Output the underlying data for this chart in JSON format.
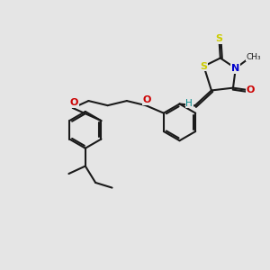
{
  "bg_color": "#e5e5e5",
  "bond_color": "#1a1a1a",
  "bond_width": 1.5,
  "S_color": "#cccc00",
  "N_color": "#0000cc",
  "O_color": "#cc0000",
  "H_color": "#008888",
  "figsize": [
    3.0,
    3.0
  ],
  "dpi": 100,
  "xlim": [
    -1.0,
    9.5
  ],
  "ylim": [
    -1.5,
    7.5
  ]
}
